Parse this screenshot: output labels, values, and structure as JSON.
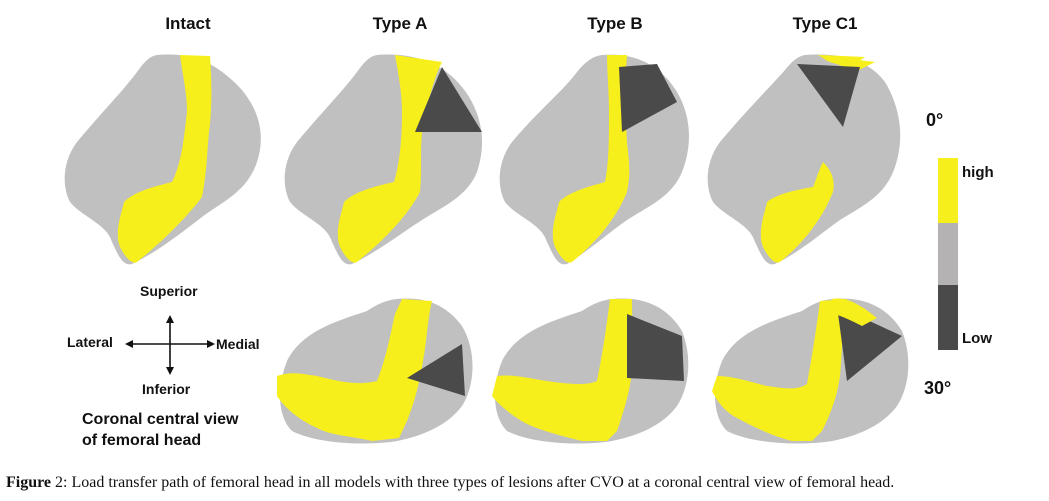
{
  "columns": [
    "Intact",
    "Type A",
    "Type B",
    "Type C1"
  ],
  "angles": {
    "row1": "0°",
    "row2": "30°"
  },
  "legend": {
    "high": "high",
    "low": "Low",
    "colors": {
      "high": "#f7ef1b",
      "mid": "#b5b2b3",
      "low": "#4a4a4a"
    }
  },
  "orientation": {
    "superior": "Superior",
    "inferior": "Inferior",
    "lateral": "Lateral",
    "medial": "Medial"
  },
  "view_label": {
    "line1": "Coronal central view",
    "line2": "of femoral head"
  },
  "caption": {
    "prefix": "Figure",
    "number": "2",
    "text": ": Load transfer path of femoral head in all models with three types of lesions after CVO at a coronal central view of femoral head."
  },
  "colors": {
    "gray": "#c0c0c0",
    "yellow": "#f7ef1b",
    "dark": "#4a4a4a"
  }
}
